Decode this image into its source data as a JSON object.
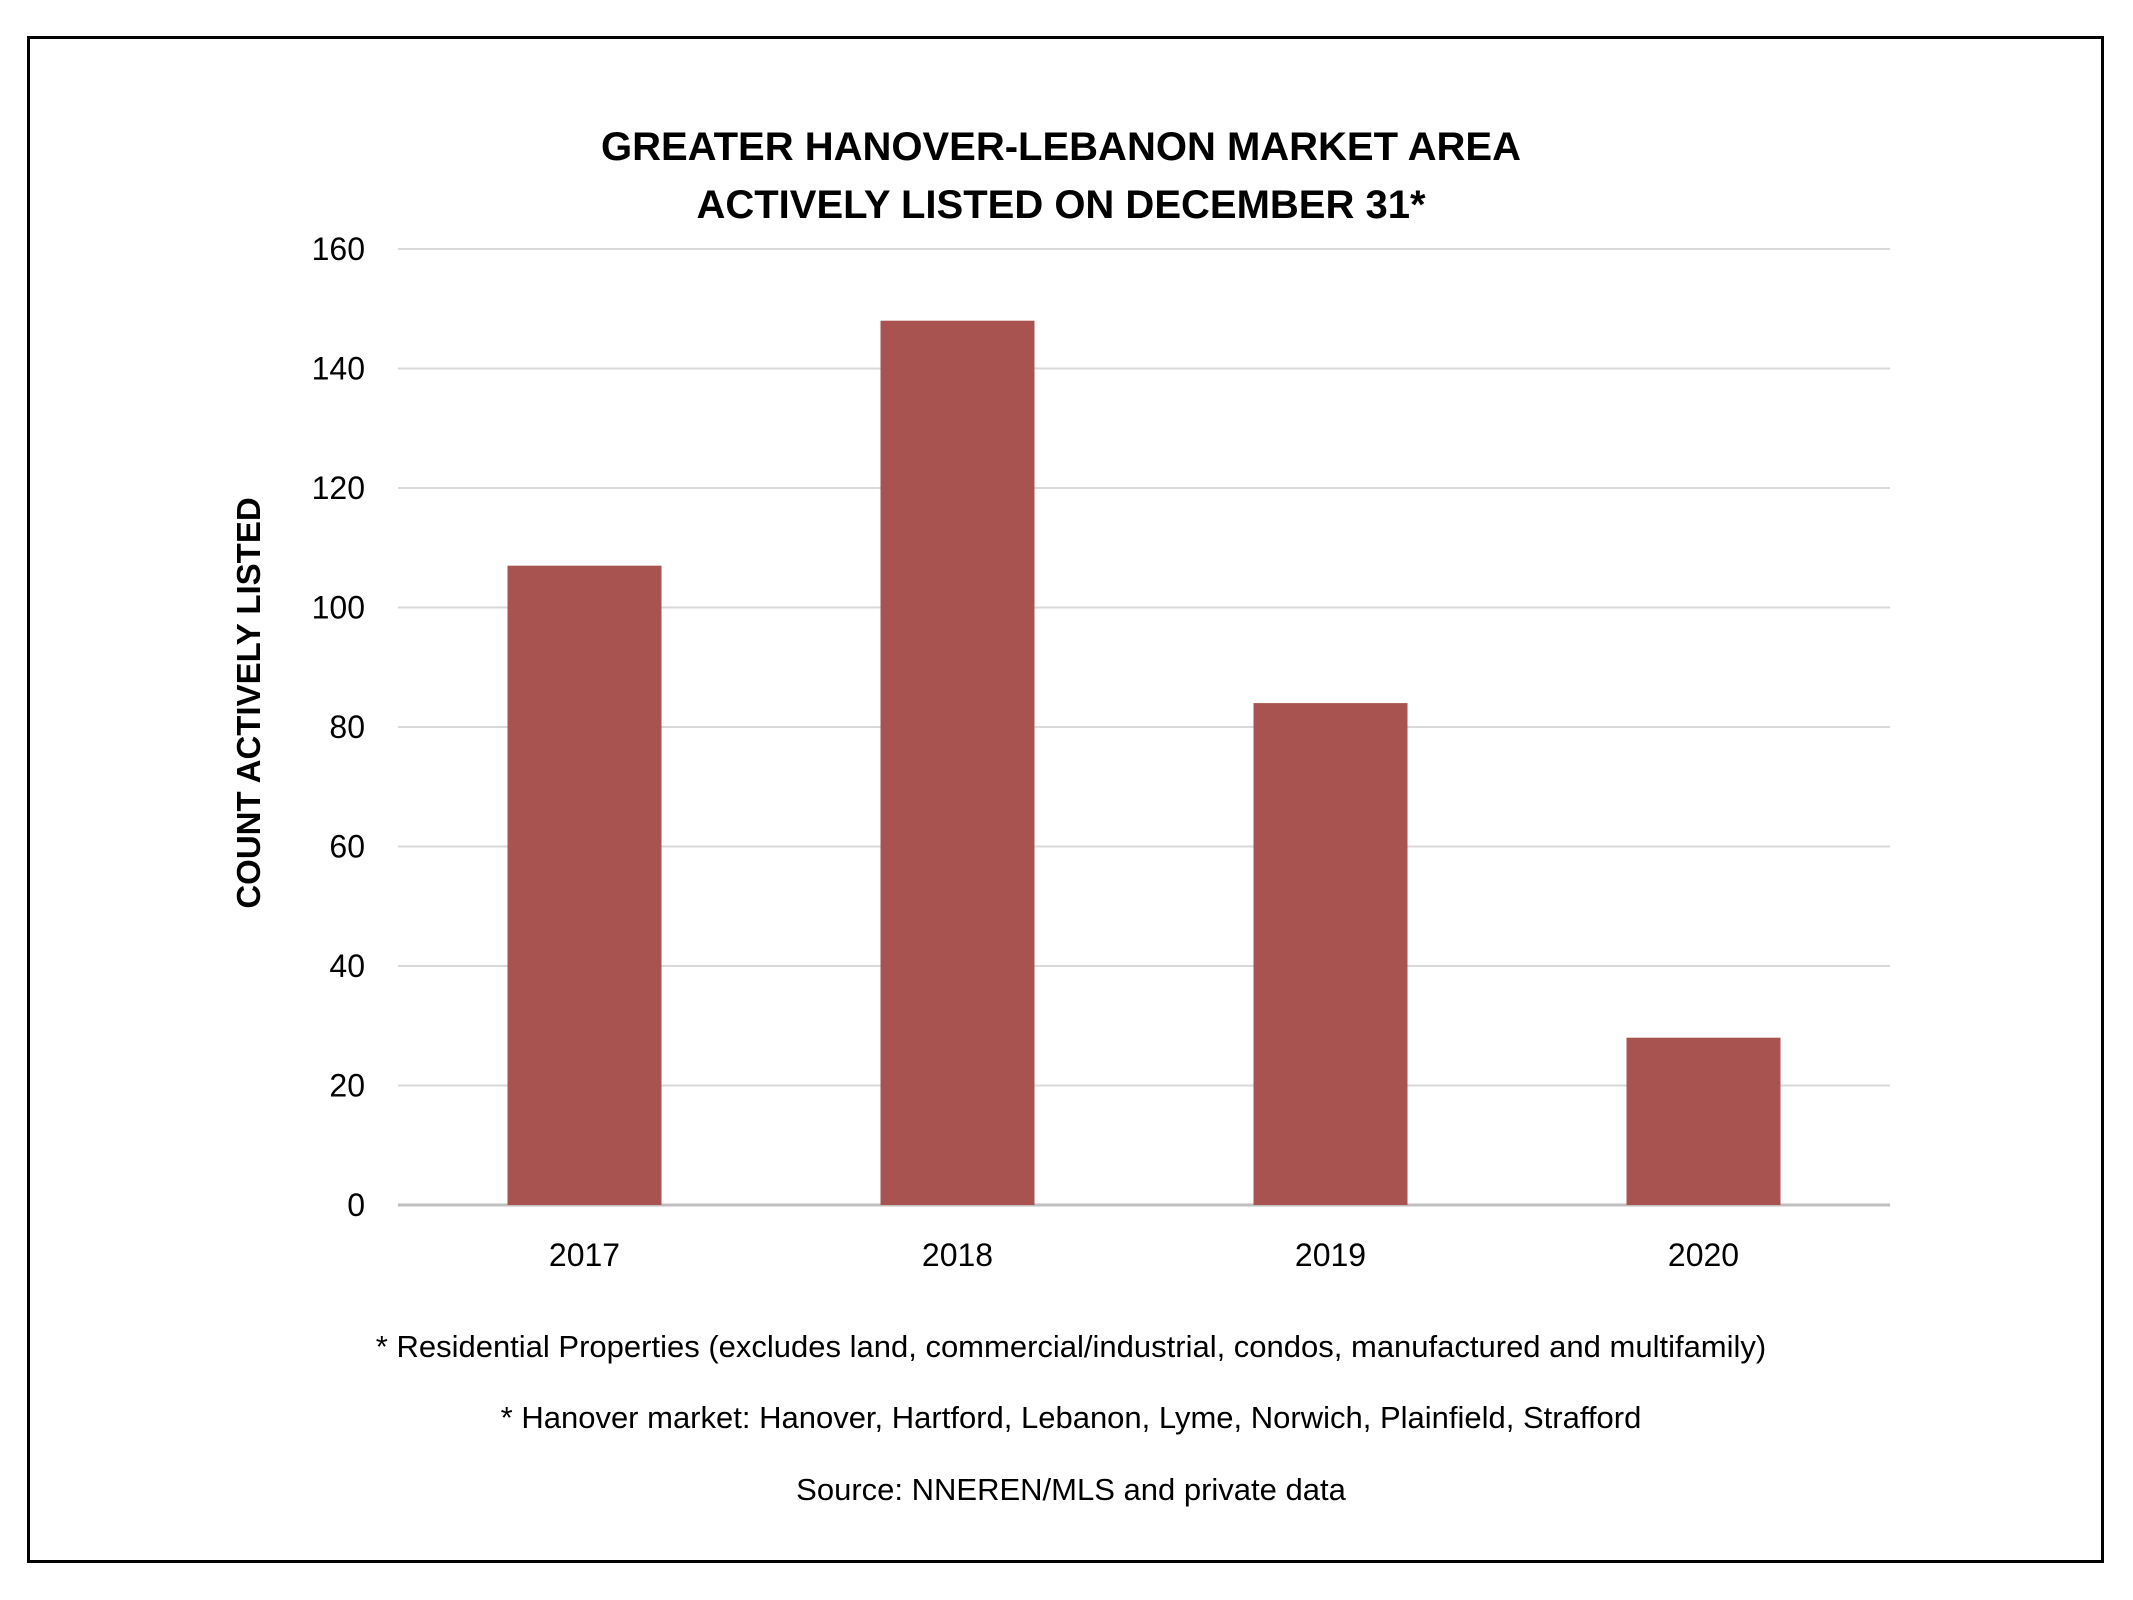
{
  "chart_data": {
    "type": "bar",
    "title_lines": [
      "GREATER HANOVER-LEBANON MARKET AREA",
      "ACTIVELY LISTED ON DECEMBER 31*"
    ],
    "xlabel": "",
    "ylabel": "COUNT ACTIVELY LISTED",
    "categories": [
      "2017",
      "2018",
      "2019",
      "2020"
    ],
    "values": [
      107,
      148,
      84,
      28
    ],
    "ylim": [
      0,
      160
    ],
    "yticks": [
      0,
      20,
      40,
      60,
      80,
      100,
      120,
      140,
      160
    ],
    "grid": true,
    "legend": "none",
    "bar_color": "#A85350",
    "grid_color": "#D9D9D9",
    "notes": [
      "* Residential Properties (excludes land, commercial/industrial, condos, manufactured and multifamily)",
      "* Hanover market: Hanover, Hartford, Lebanon, Lyme, Norwich, Plainfield, Strafford",
      "Source: NNEREN/MLS and private data"
    ]
  }
}
